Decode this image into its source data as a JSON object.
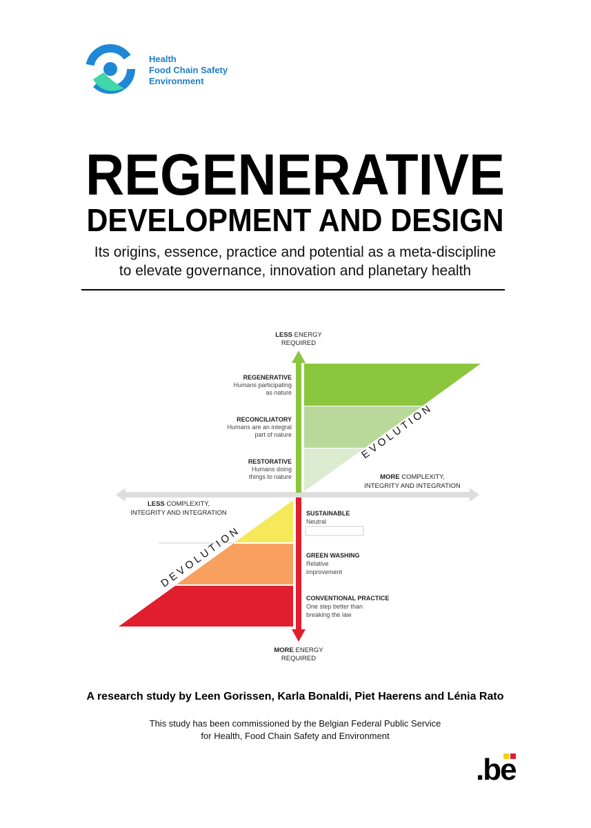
{
  "logo": {
    "lines": [
      "Health",
      "Food Chain Safety",
      "Environment"
    ]
  },
  "title": {
    "line1": "REGENERATIVE",
    "line2": "DEVELOPMENT AND DESIGN"
  },
  "subtitle": {
    "lines": [
      "Its origins, essence, practice and potential as a meta-discipline",
      "to elevate governance, innovation and planetary health"
    ]
  },
  "diagram": {
    "top_label": {
      "bold": "LESS",
      "rest": "ENERGY",
      "line2": "REQUIRED"
    },
    "bottom_label": {
      "bold": "MORE",
      "rest": "ENERGY",
      "line2": "REQUIRED"
    },
    "right_label": {
      "bold": "MORE",
      "rest": "COMPLEXITY,",
      "line2": "INTEGRITY AND INTEGRATION"
    },
    "left_label": {
      "bold": "LESS",
      "rest": "COMPLEXITY,",
      "line2": "INTEGRITY AND INTEGRATION"
    },
    "evolution": "E V O L U T I O N",
    "devolution": "D E V O L U T I O N",
    "upper_levels": [
      {
        "name": "REGENERATIVE",
        "desc": [
          "Humans participating",
          "as nature"
        ]
      },
      {
        "name": "RECONCILIATORY",
        "desc": [
          "Humans are an integral",
          "part of nature"
        ]
      },
      {
        "name": "RESTORATIVE",
        "desc": [
          "Humans doing",
          "things to nature"
        ]
      }
    ],
    "lower_levels": [
      {
        "name": "SUSTAINABLE",
        "desc": [
          "Neutral"
        ]
      },
      {
        "name": "GREEN WASHING",
        "desc": [
          "Relative",
          "improvement"
        ]
      },
      {
        "name": "CONVENTIONAL PRACTICE",
        "desc": [
          "One step better than",
          "breaking the law"
        ]
      }
    ]
  },
  "authors": "A research study by Leen Gorissen, Karla Bonaldi, Piet Haerens and Lénia Rato",
  "commission": [
    "This study has been commissioned by the Belgian Federal Public Service",
    "for Health, Food Chain Safety and Environment"
  ],
  "footer_logo": ".be"
}
